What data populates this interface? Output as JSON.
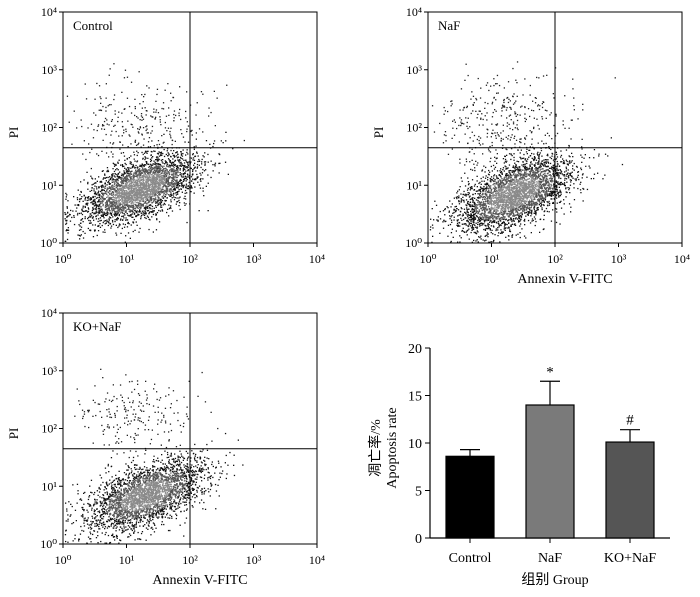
{
  "chart_data": [
    {
      "type": "scatter",
      "panel_label": "Control",
      "xlabel": "",
      "ylabel": "PI",
      "x_ticks": [
        "10⁰",
        "10¹",
        "10²",
        "10³",
        "10⁴"
      ],
      "y_ticks": [
        "10⁰",
        "10¹",
        "10²",
        "10³",
        "10⁴"
      ],
      "xlim": [
        0,
        4
      ],
      "ylim": [
        0,
        4
      ],
      "x_scale": "log10",
      "y_scale": "log10",
      "gate_x_log": 2.0,
      "gate_y_log": 1.65,
      "population": {
        "center_log": [
          1.2,
          0.95
        ],
        "spread_log": [
          0.45,
          0.3
        ],
        "points": 3200
      },
      "scatter_upper": {
        "center_log": [
          1.1,
          2.1
        ],
        "spread_log": [
          0.6,
          0.4
        ],
        "points": 300
      }
    },
    {
      "type": "scatter",
      "panel_label": "NaF",
      "xlabel": "Annexin V-FITC",
      "ylabel": "PI",
      "x_ticks": [
        "10⁰",
        "10¹",
        "10²",
        "10³",
        "10⁴"
      ],
      "y_ticks": [
        "10⁰",
        "10¹",
        "10²",
        "10³",
        "10⁴"
      ],
      "xlim": [
        0,
        4
      ],
      "ylim": [
        0,
        4
      ],
      "x_scale": "log10",
      "y_scale": "log10",
      "gate_x_log": 2.0,
      "gate_y_log": 1.65,
      "population": {
        "center_log": [
          1.35,
          0.85
        ],
        "spread_log": [
          0.45,
          0.32
        ],
        "points": 3200
      },
      "scatter_upper": {
        "center_log": [
          1.2,
          2.1
        ],
        "spread_log": [
          0.55,
          0.4
        ],
        "points": 380
      }
    },
    {
      "type": "scatter",
      "panel_label": "KO+NaF",
      "xlabel": "Annexin V-FITC",
      "ylabel": "PI",
      "x_ticks": [
        "10⁰",
        "10¹",
        "10²",
        "10³",
        "10⁴"
      ],
      "y_ticks": [
        "10⁰",
        "10¹",
        "10²",
        "10³",
        "10⁴"
      ],
      "xlim": [
        0,
        4
      ],
      "ylim": [
        0,
        4
      ],
      "x_scale": "log10",
      "y_scale": "log10",
      "gate_x_log": 2.0,
      "gate_y_log": 1.65,
      "population": {
        "center_log": [
          1.3,
          0.85
        ],
        "spread_log": [
          0.45,
          0.3
        ],
        "points": 3000
      },
      "scatter_upper": {
        "center_log": [
          1.1,
          2.2
        ],
        "spread_log": [
          0.5,
          0.35
        ],
        "points": 220
      }
    },
    {
      "type": "bar",
      "categories": [
        "Control",
        "NaF",
        "KO+NaF"
      ],
      "values": [
        8.6,
        14.0,
        10.1
      ],
      "errors": [
        0.7,
        2.5,
        1.3
      ],
      "significance": [
        "",
        "*",
        "#"
      ],
      "bar_colors": [
        "#000000",
        "#7a7a7a",
        "#555555"
      ],
      "ylabel_cn": "凋亡率/%",
      "ylabel_en": "Apoptosis rate",
      "xlabel": "组别 Group",
      "ylim": [
        0,
        20
      ],
      "y_ticks": [
        "0",
        "5",
        "10",
        "15",
        "20"
      ]
    }
  ]
}
